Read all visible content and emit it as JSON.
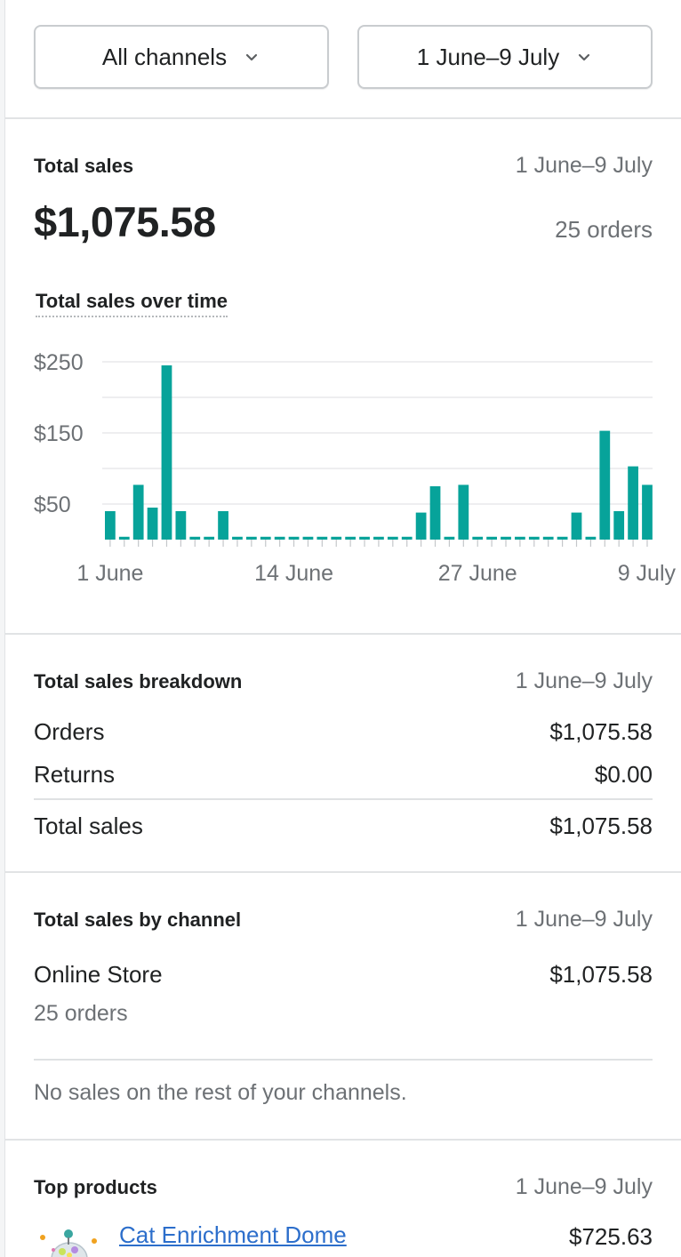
{
  "filters": {
    "channel_label": "All channels",
    "date_label": "1 June–9 July"
  },
  "total_sales_card": {
    "title": "Total sales",
    "date_range": "1 June–9 July",
    "amount": "$1,075.58",
    "orders": "25 orders",
    "chart_title": "Total sales over time"
  },
  "chart_data": {
    "type": "bar",
    "title": "Total sales over time",
    "xlabel": "",
    "ylabel": "",
    "ylim": [
      0,
      250
    ],
    "yticks": [
      50,
      150,
      250
    ],
    "ytick_labels": [
      "$50",
      "$150",
      "$250"
    ],
    "grid": true,
    "legend": "none",
    "bar_color": "#07a39a",
    "categories": [
      "1 Jun",
      "2 Jun",
      "3 Jun",
      "4 Jun",
      "5 Jun",
      "6 Jun",
      "7 Jun",
      "8 Jun",
      "9 Jun",
      "10 Jun",
      "11 Jun",
      "12 Jun",
      "13 Jun",
      "14 Jun",
      "15 Jun",
      "16 Jun",
      "17 Jun",
      "18 Jun",
      "19 Jun",
      "20 Jun",
      "21 Jun",
      "22 Jun",
      "23 Jun",
      "24 Jun",
      "25 Jun",
      "26 Jun",
      "27 Jun",
      "28 Jun",
      "29 Jun",
      "30 Jun",
      "1 Jul",
      "2 Jul",
      "3 Jul",
      "4 Jul",
      "5 Jul",
      "6 Jul",
      "7 Jul",
      "8 Jul",
      "9 Jul"
    ],
    "values": [
      40,
      4,
      77,
      45,
      245,
      40,
      4,
      4,
      40,
      4,
      4,
      4,
      4,
      4,
      4,
      4,
      4,
      4,
      4,
      4,
      4,
      4,
      38,
      75,
      4,
      77,
      4,
      4,
      4,
      4,
      4,
      4,
      4,
      38,
      4,
      153,
      40,
      103,
      77
    ],
    "xtick_labels": [
      {
        "index": 0,
        "label": "1 June"
      },
      {
        "index": 13,
        "label": "14 June"
      },
      {
        "index": 26,
        "label": "27 June"
      },
      {
        "index": 38,
        "label": "9 July"
      }
    ]
  },
  "breakdown_card": {
    "title": "Total sales breakdown",
    "date_range": "1 June–9 July",
    "rows": [
      {
        "label": "Orders",
        "value": "$1,075.58"
      },
      {
        "label": "Returns",
        "value": "$0.00"
      }
    ],
    "total": {
      "label": "Total sales",
      "value": "$1,075.58"
    }
  },
  "channel_card": {
    "title": "Total sales by channel",
    "date_range": "1 June–9 July",
    "channel": {
      "name": "Online Store",
      "value": "$1,075.58",
      "orders": "25 orders"
    },
    "note": "No sales on the rest of your channels."
  },
  "products_card": {
    "title": "Top products",
    "date_range": "1 June–9 July",
    "items": [
      {
        "name": "Cat Enrichment Dome",
        "value": "$725.63"
      }
    ]
  },
  "colors": {
    "accent_bar": "#07a39a",
    "link": "#2c6ecb",
    "muted_text": "#6d7175",
    "divider": "#e1e3e5"
  }
}
